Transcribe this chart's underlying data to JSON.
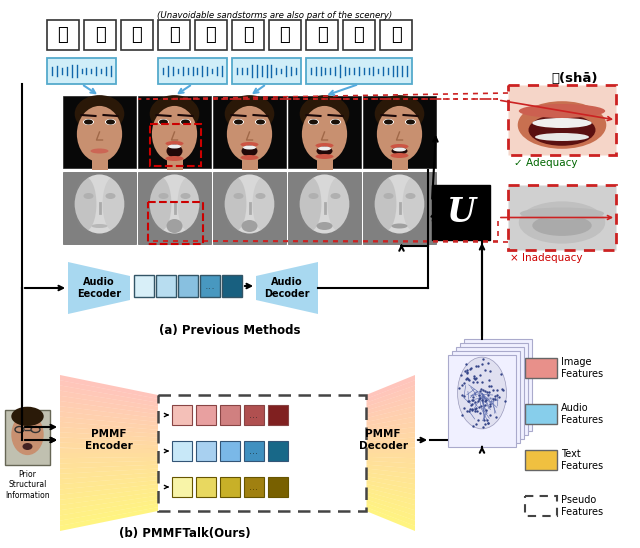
{
  "bg_color": "#ffffff",
  "english_caption": "(Unavoidable sandstorms are also part of the scenery)",
  "chinese_chars": [
    "躺",
    "不",
    "过",
    "的",
    "沙",
    "暴",
    "都",
    "是",
    "风",
    "景"
  ],
  "sha_label": "沙(shā)",
  "prev_methods_label": "(a) Previous Methods",
  "ours_label": "(b) PMMFTalk(Ours)",
  "prior_info_label": "Prior\nStructural\nInformation",
  "audio_encoder_text": "Audio\nEecoder",
  "audio_decoder_text": "Audio\nDecoder",
  "pmmf_encoder_text": "PMMF\nEncoder",
  "pmmf_decoder_text": "PMMF\nDecoder",
  "adequacy_label": "✓ Adequacy",
  "inadequacy_label": "× Inadequacy",
  "legend_items": [
    {
      "label": "Image\nFeatures",
      "color": "#e8908a",
      "dashed": false
    },
    {
      "label": "Audio\nFeatures",
      "color": "#87ceeb",
      "dashed": false
    },
    {
      "label": "Text\nFeatures",
      "color": "#f0c040",
      "dashed": false
    },
    {
      "label": "Pseudo\nFeatures",
      "color": "#ffffff",
      "dashed": true
    }
  ],
  "img_row_colors": [
    "#f4c0b8",
    "#e8a0a0",
    "#d08080",
    "#b05050",
    "#802020"
  ],
  "aud_row_colors": [
    "#c8e8f8",
    "#a8d0f0",
    "#7ab8e8",
    "#4090c0",
    "#186888"
  ],
  "txt_row_colors": [
    "#f8f4a8",
    "#e8d860",
    "#c8b028",
    "#a08010",
    "#786000"
  ],
  "prev_aud_colors": [
    "#d8eff8",
    "#b8ddf0",
    "#88c0e0",
    "#4898c0",
    "#186080"
  ],
  "red_dashed": "#cc2222",
  "cyan_arrow": "#55aadd",
  "face_bg": "#0a0a0a",
  "mesh_bg": "#909090",
  "skin_color": "#c89070",
  "hair_color": "#2a1808",
  "mesh_color": "#cccccc",
  "encoder_blue": "#a8d8f0",
  "decoder_blue": "#a8d8f0",
  "pmmf_enc_color1": "#f8d0c8",
  "pmmf_enc_color2": "#f8f0c0",
  "face_mesh_dot": "#334488"
}
